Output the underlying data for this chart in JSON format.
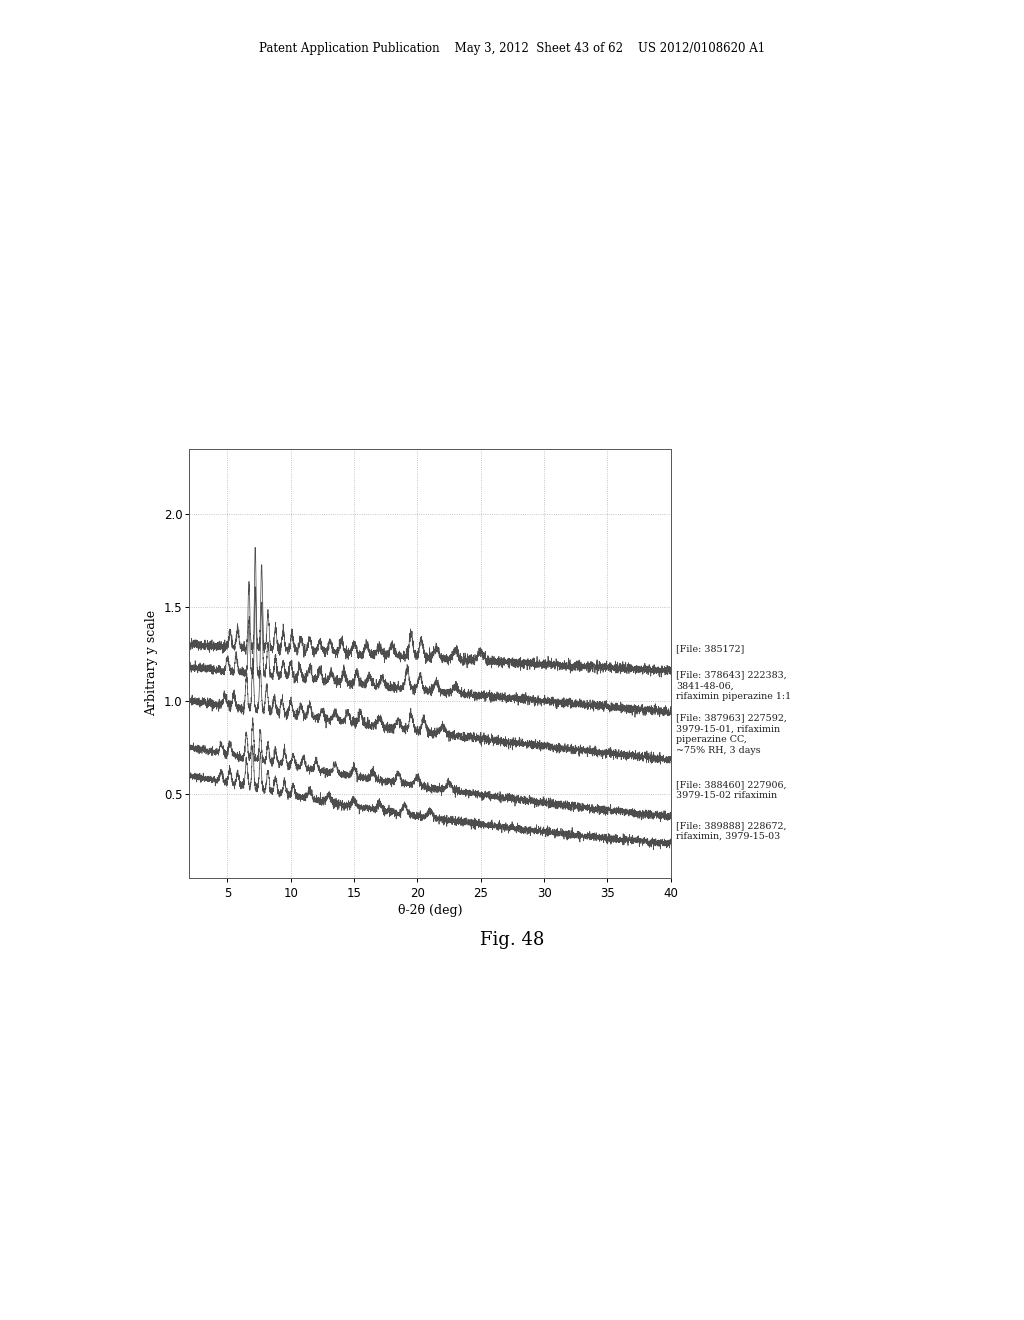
{
  "title": "Fig. 48",
  "xlabel": "θ-2θ (deg)",
  "ylabel": "Arbitrary y scale",
  "xlim": [
    2,
    40
  ],
  "ylim": [
    0.05,
    2.35
  ],
  "yticks": [
    0.5,
    1.0,
    1.5,
    2.0
  ],
  "xticks": [
    5,
    10,
    15,
    20,
    25,
    30,
    35,
    40
  ],
  "header_text": "Patent Application Publication    May 3, 2012  Sheet 43 of 62    US 2012/0108620 A1",
  "legend_labels": [
    "[File: 385172]",
    "[File: 378643] 222383,\n3841-48-06,\nrifaximin piperazine 1:1",
    "[File: 387963] 227592,\n3979-15-01, rifaximin\npiperazine CC,\n~75% RH, 3 days",
    "[File: 388460] 227906,\n3979-15-02 rifaximin",
    "[File: 389888] 228672,\nrifaximin, 3979-15-03"
  ],
  "background_color": "#ffffff",
  "line_color": "#3a3a3a",
  "grid_color": "#aaaaaa"
}
